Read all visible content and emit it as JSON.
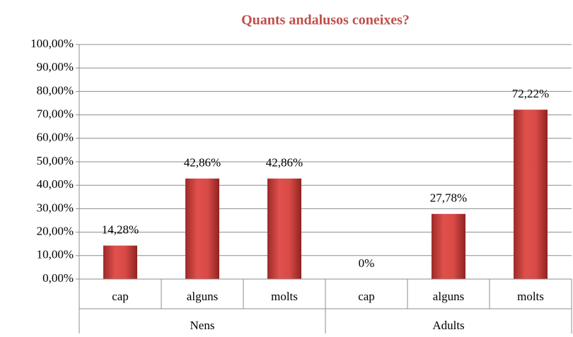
{
  "chart_data": {
    "type": "bar",
    "title": "Quants andalusos coneixes?",
    "categories": [
      "cap",
      "alguns",
      "molts",
      "cap",
      "alguns",
      "molts"
    ],
    "groups": [
      "Nens",
      "Adults"
    ],
    "values": [
      14.28,
      42.86,
      42.86,
      0,
      27.78,
      72.22
    ],
    "value_labels": [
      "14,28%",
      "42,86%",
      "42,86%",
      "0%",
      "27,78%",
      "72,22%"
    ],
    "color": "#c0504d",
    "ylim": [
      0,
      100
    ],
    "yticks": [
      {
        "value": 0,
        "label": "0,00%"
      },
      {
        "value": 10,
        "label": "10,00%"
      },
      {
        "value": 20,
        "label": "20,00%"
      },
      {
        "value": 30,
        "label": "30,00%"
      },
      {
        "value": 40,
        "label": "40,00%"
      },
      {
        "value": 50,
        "label": "50,00%"
      },
      {
        "value": 60,
        "label": "60,00%"
      },
      {
        "value": 70,
        "label": "70,00%"
      },
      {
        "value": 80,
        "label": "80,00%"
      },
      {
        "value": 90,
        "label": "90,00%"
      },
      {
        "value": 100,
        "label": "100,00%"
      }
    ],
    "grid": true
  }
}
